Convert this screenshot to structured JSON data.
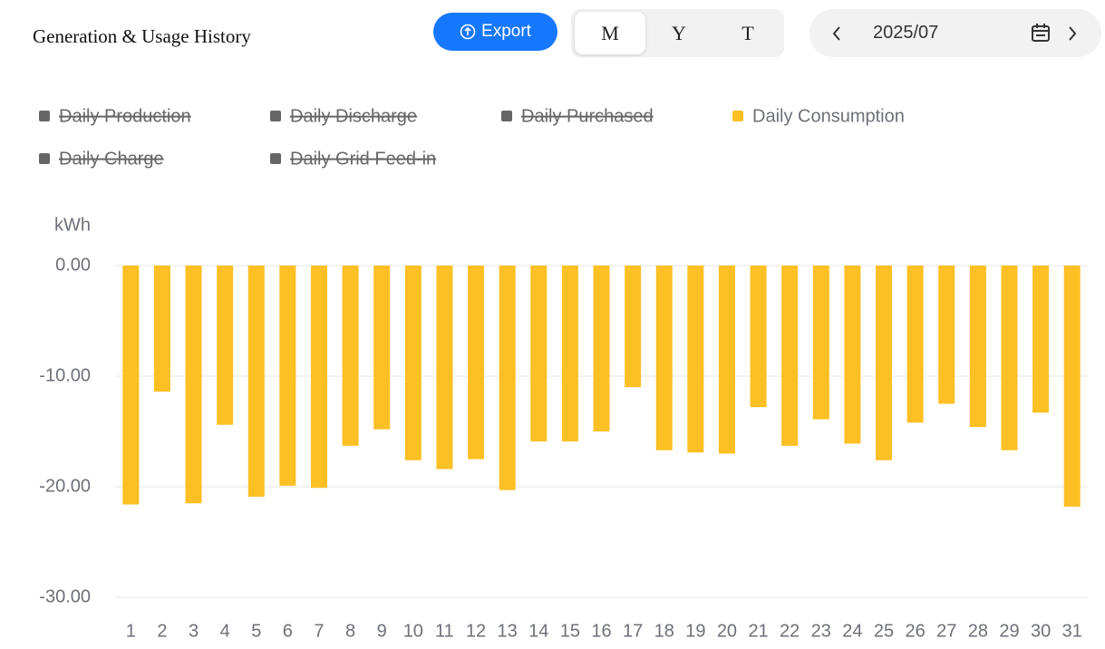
{
  "header": {
    "title": "Generation & Usage History",
    "export": "Export",
    "periods": [
      "M",
      "Y",
      "T"
    ],
    "active_period": 0,
    "date": "2025/07"
  },
  "chart_data": {
    "type": "bar",
    "y_label": "kWh",
    "categories": [
      "1",
      "2",
      "3",
      "4",
      "5",
      "6",
      "7",
      "8",
      "9",
      "10",
      "11",
      "12",
      "13",
      "14",
      "15",
      "16",
      "17",
      "18",
      "19",
      "20",
      "21",
      "22",
      "23",
      "24",
      "25",
      "26",
      "27",
      "28",
      "29",
      "30",
      "31"
    ],
    "series": [
      {
        "name": "Daily Production",
        "color": "#666666",
        "hidden": true
      },
      {
        "name": "Daily Discharge",
        "color": "#666666",
        "hidden": true
      },
      {
        "name": "Daily Purchased",
        "color": "#666666",
        "hidden": true
      },
      {
        "name": "Daily Consumption",
        "color": "#fcbf24",
        "values": [
          -21.6,
          -11.4,
          -21.5,
          -14.4,
          -20.9,
          -19.9,
          -20.1,
          -16.3,
          -14.8,
          -17.6,
          -18.4,
          -17.5,
          -20.3,
          -15.9,
          -15.9,
          -15.0,
          -11.0,
          -16.7,
          -16.9,
          -17.0,
          -12.8,
          -16.3,
          -13.9,
          -16.1,
          -17.6,
          -14.2,
          -12.5,
          -14.6,
          -16.7,
          -13.3,
          -21.8
        ]
      },
      {
        "name": "Daily Charge",
        "color": "#666666",
        "hidden": true
      },
      {
        "name": "Daily Grid Feed-in",
        "color": "#666666",
        "hidden": true
      }
    ],
    "ylim": [
      -30,
      0
    ],
    "yticks": [
      {
        "value": 0,
        "label": "0.00"
      },
      {
        "value": -10,
        "label": "-10.00"
      },
      {
        "value": -20,
        "label": "-20.00"
      },
      {
        "value": -30,
        "label": "-30.00"
      }
    ],
    "grid": true
  }
}
